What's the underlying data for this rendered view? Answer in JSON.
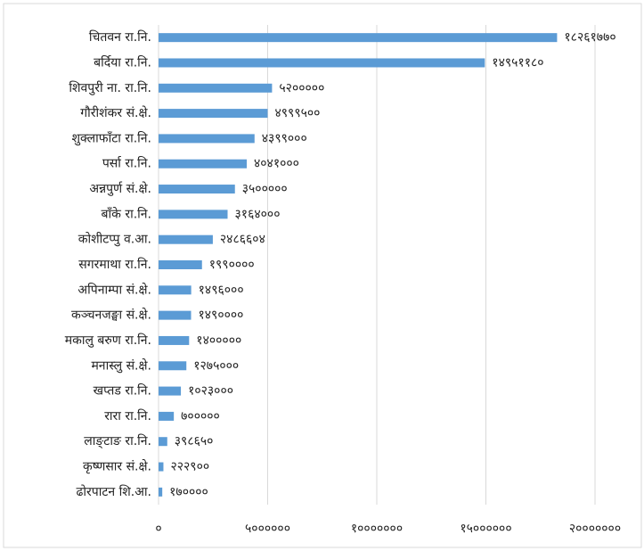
{
  "chart_data": {
    "type": "bar",
    "orientation": "horizontal",
    "color": "#5b9bd5",
    "categories": [
      "चितवन रा.नि.",
      "बर्दिया रा.नि.",
      "शिवपुरी ना. रा.नि.",
      "गौरीशंकर सं.क्षे.",
      "शुक्लाफाँटा रा.नि.",
      "पर्सा रा.नि.",
      "अन्नपुर्ण सं.क्षे.",
      "बाँके रा.नि.",
      "कोशीटप्पु व.आ.",
      "सगरमाथा रा.नि.",
      "अपिनाम्पा सं.क्षे.",
      "कञ्चनजङ्घा सं.क्षे.",
      "मकालु बरुण रा.नि.",
      "मनास्लु सं.क्षे.",
      "खप्तड रा.नि.",
      "रारा रा.नि.",
      "लाङ्टाङ रा.नि.",
      "कृष्णसार सं.क्षे.",
      "ढोरपाटन शि.आ."
    ],
    "values": [
      18261770,
      14951180,
      5200000,
      4999500,
      4399000,
      4041000,
      3500000,
      3164000,
      2486604,
      1990000,
      1496000,
      1490000,
      1400000,
      1275000,
      1023000,
      700000,
      398650,
      222900,
      170000
    ],
    "value_labels": [
      "१८२६१७७०",
      "१४९५११८०",
      "५२०००००",
      "४९९९५००",
      "४३९९०००",
      "४०४१०००",
      "३५०००००",
      "३१६४०००",
      "२४८६६०४",
      "१९९००००",
      "१४९६०००",
      "१४९००००",
      "१४०००००",
      "१२७५०००",
      "१०२३०००",
      "७०००००",
      "३९८६५०",
      "२२२९००",
      "१७००००"
    ],
    "xlim": [
      0,
      20000000
    ],
    "xticks": [
      {
        "value": 0,
        "label": "०"
      },
      {
        "value": 5000000,
        "label": "५००००००"
      },
      {
        "value": 10000000,
        "label": "१०००००००"
      },
      {
        "value": 15000000,
        "label": "१५००००००"
      },
      {
        "value": 20000000,
        "label": "२०००००००"
      }
    ],
    "grid": true
  }
}
